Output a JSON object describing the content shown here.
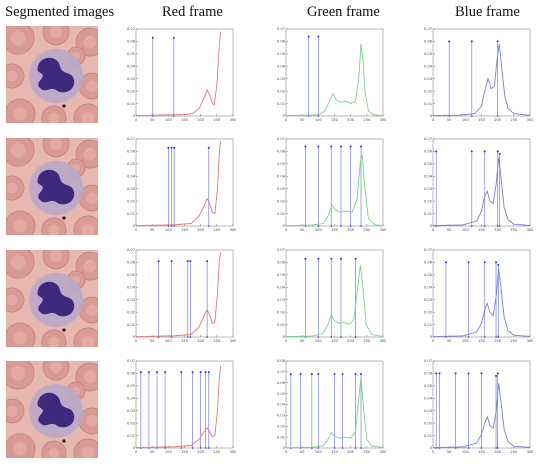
{
  "headers": [
    "Segmented images",
    "Red frame",
    "Green frame",
    "Blue frame"
  ],
  "colors": {
    "red": "#e8787c",
    "green": "#7ad28a",
    "blue": "#7b7fdc",
    "marker": "#2a2ee0",
    "cell_bg": "#e7b8b0",
    "rbc": "#d99a95",
    "nucleus": "#3d2a7e"
  },
  "chart_data": [
    {
      "row": 1,
      "channel": "red",
      "type": "line",
      "xlim": [
        0,
        300
      ],
      "xticks": [
        "0",
        "50",
        "100",
        "150",
        "200",
        "250",
        "300"
      ],
      "yticks": [
        "0",
        "0.01",
        "0.02",
        "0.03",
        "0.04",
        "0.05",
        "0.06",
        "0.07"
      ],
      "ylim": [
        0,
        0.07
      ],
      "markers": [
        {
          "x": 52,
          "y": 0.063
        },
        {
          "x": 117,
          "y": 0.063
        }
      ],
      "curve": [
        [
          0,
          0.0003
        ],
        [
          40,
          0.0005
        ],
        [
          80,
          0.0008
        ],
        [
          120,
          0.001
        ],
        [
          150,
          0.0012
        ],
        [
          175,
          0.002
        ],
        [
          195,
          0.006
        ],
        [
          210,
          0.014
        ],
        [
          220,
          0.021
        ],
        [
          228,
          0.017
        ],
        [
          236,
          0.01
        ],
        [
          242,
          0.009
        ],
        [
          250,
          0.025
        ],
        [
          258,
          0.058
        ],
        [
          262,
          0.068
        ]
      ]
    },
    {
      "row": 1,
      "channel": "green",
      "type": "line",
      "xlim": [
        0,
        300
      ],
      "xticks": [
        "0",
        "50",
        "100",
        "150",
        "200",
        "250",
        "300"
      ],
      "yticks": [
        "0",
        "0.01",
        "0.02",
        "0.03",
        "0.04",
        "0.05",
        "0.06",
        "0.07"
      ],
      "ylim": [
        0,
        0.07
      ],
      "markers": [
        {
          "x": 70,
          "y": 0.064
        },
        {
          "x": 100,
          "y": 0.064
        }
      ],
      "curve": [
        [
          0,
          0.0003
        ],
        [
          60,
          0.0006
        ],
        [
          100,
          0.001
        ],
        [
          120,
          0.004
        ],
        [
          135,
          0.012
        ],
        [
          145,
          0.018
        ],
        [
          155,
          0.013
        ],
        [
          170,
          0.011
        ],
        [
          185,
          0.012
        ],
        [
          200,
          0.01
        ],
        [
          215,
          0.012
        ],
        [
          225,
          0.03
        ],
        [
          232,
          0.058
        ],
        [
          238,
          0.045
        ],
        [
          245,
          0.018
        ],
        [
          255,
          0.004
        ],
        [
          270,
          0.001
        ],
        [
          300,
          0.0004
        ]
      ]
    },
    {
      "row": 1,
      "channel": "blue",
      "type": "line",
      "xlim": [
        0,
        300
      ],
      "xticks": [
        "0",
        "50",
        "100",
        "150",
        "200",
        "250",
        "300"
      ],
      "yticks": [
        "0",
        "0.01",
        "0.02",
        "0.03",
        "0.04",
        "0.05",
        "0.06",
        "0.07"
      ],
      "ylim": [
        0,
        0.07
      ],
      "markers": [
        {
          "x": 50,
          "y": 0.06
        },
        {
          "x": 120,
          "y": 0.06
        },
        {
          "x": 200,
          "y": 0.06
        }
      ],
      "curve": [
        [
          0,
          0.0003
        ],
        [
          80,
          0.0006
        ],
        [
          130,
          0.002
        ],
        [
          150,
          0.008
        ],
        [
          160,
          0.02
        ],
        [
          170,
          0.03
        ],
        [
          180,
          0.022
        ],
        [
          190,
          0.024
        ],
        [
          198,
          0.045
        ],
        [
          205,
          0.058
        ],
        [
          212,
          0.04
        ],
        [
          222,
          0.016
        ],
        [
          232,
          0.006
        ],
        [
          250,
          0.002
        ],
        [
          300,
          0.0005
        ]
      ]
    },
    {
      "row": 2,
      "channel": "red",
      "type": "line",
      "xlim": [
        0,
        300
      ],
      "xticks": [
        "0",
        "50",
        "100",
        "150",
        "200",
        "250",
        "300"
      ],
      "yticks": [
        "0",
        "0.01",
        "0.02",
        "0.03",
        "0.04",
        "0.05",
        "0.06",
        "0.07"
      ],
      "ylim": [
        0,
        0.07
      ],
      "markers": [
        {
          "x": 100,
          "y": 0.063
        },
        {
          "x": 110,
          "y": 0.063
        },
        {
          "x": 118,
          "y": 0.063
        },
        {
          "x": 225,
          "y": 0.063
        }
      ],
      "curve": [
        [
          0,
          0.0003
        ],
        [
          60,
          0.0006
        ],
        [
          120,
          0.001
        ],
        [
          170,
          0.002
        ],
        [
          195,
          0.008
        ],
        [
          210,
          0.016
        ],
        [
          220,
          0.022
        ],
        [
          228,
          0.018
        ],
        [
          236,
          0.011
        ],
        [
          244,
          0.01
        ],
        [
          252,
          0.03
        ],
        [
          258,
          0.06
        ],
        [
          262,
          0.068
        ]
      ]
    },
    {
      "row": 2,
      "channel": "green",
      "type": "line",
      "xlim": [
        0,
        300
      ],
      "xticks": [
        "0",
        "50",
        "100",
        "150",
        "200",
        "250",
        "300"
      ],
      "yticks": [
        "0",
        "0.01",
        "0.02",
        "0.03",
        "0.04",
        "0.05",
        "0.06",
        "0.07"
      ],
      "ylim": [
        0,
        0.07
      ],
      "markers": [
        {
          "x": 60,
          "y": 0.064
        },
        {
          "x": 100,
          "y": 0.064
        },
        {
          "x": 140,
          "y": 0.064
        },
        {
          "x": 170,
          "y": 0.064
        },
        {
          "x": 200,
          "y": 0.064
        },
        {
          "x": 232,
          "y": 0.064
        }
      ],
      "curve": [
        [
          0,
          0.0003
        ],
        [
          80,
          0.0007
        ],
        [
          115,
          0.002
        ],
        [
          130,
          0.008
        ],
        [
          142,
          0.017
        ],
        [
          152,
          0.013
        ],
        [
          168,
          0.011
        ],
        [
          185,
          0.012
        ],
        [
          205,
          0.011
        ],
        [
          220,
          0.022
        ],
        [
          230,
          0.052
        ],
        [
          236,
          0.057
        ],
        [
          244,
          0.03
        ],
        [
          255,
          0.006
        ],
        [
          275,
          0.001
        ],
        [
          300,
          0.0004
        ]
      ]
    },
    {
      "row": 2,
      "channel": "blue",
      "type": "line",
      "xlim": [
        0,
        300
      ],
      "xticks": [
        "0",
        "50",
        "100",
        "150",
        "200",
        "250",
        "300"
      ],
      "yticks": [
        "0",
        "0.01",
        "0.02",
        "0.03",
        "0.04",
        "0.05",
        "0.06",
        "0.07"
      ],
      "ylim": [
        0,
        0.07
      ],
      "markers": [
        {
          "x": 10,
          "y": 0.06
        },
        {
          "x": 120,
          "y": 0.06
        },
        {
          "x": 160,
          "y": 0.06
        },
        {
          "x": 200,
          "y": 0.06
        },
        {
          "x": 206,
          "y": 0.058
        }
      ],
      "curve": [
        [
          0,
          0.0003
        ],
        [
          90,
          0.0008
        ],
        [
          135,
          0.004
        ],
        [
          150,
          0.012
        ],
        [
          160,
          0.024
        ],
        [
          168,
          0.028
        ],
        [
          176,
          0.02
        ],
        [
          186,
          0.018
        ],
        [
          196,
          0.035
        ],
        [
          203,
          0.055
        ],
        [
          210,
          0.04
        ],
        [
          220,
          0.015
        ],
        [
          232,
          0.005
        ],
        [
          250,
          0.0015
        ],
        [
          300,
          0.0004
        ]
      ]
    },
    {
      "row": 3,
      "channel": "red",
      "type": "line",
      "xlim": [
        0,
        300
      ],
      "xticks": [
        "0",
        "50",
        "100",
        "150",
        "200",
        "250",
        "300"
      ],
      "yticks": [
        "0",
        "0.01",
        "0.02",
        "0.03",
        "0.04",
        "0.05",
        "0.06",
        "0.07"
      ],
      "ylim": [
        0,
        0.07
      ],
      "markers": [
        {
          "x": 70,
          "y": 0.061
        },
        {
          "x": 110,
          "y": 0.061
        },
        {
          "x": 160,
          "y": 0.061
        },
        {
          "x": 168,
          "y": 0.061
        },
        {
          "x": 220,
          "y": 0.061
        }
      ],
      "curve": [
        [
          0,
          0.0003
        ],
        [
          60,
          0.0006
        ],
        [
          120,
          0.001
        ],
        [
          170,
          0.002
        ],
        [
          195,
          0.008
        ],
        [
          210,
          0.017
        ],
        [
          220,
          0.022
        ],
        [
          228,
          0.018
        ],
        [
          236,
          0.011
        ],
        [
          244,
          0.012
        ],
        [
          252,
          0.035
        ],
        [
          258,
          0.062
        ],
        [
          262,
          0.068
        ]
      ]
    },
    {
      "row": 3,
      "channel": "green",
      "type": "line",
      "xlim": [
        0,
        300
      ],
      "xticks": [
        "0",
        "50",
        "100",
        "150",
        "200",
        "250",
        "300"
      ],
      "yticks": [
        "0",
        "0.01",
        "0.02",
        "0.03",
        "0.04",
        "0.05",
        "0.06",
        "0.07"
      ],
      "ylim": [
        0,
        0.07
      ],
      "markers": [
        {
          "x": 60,
          "y": 0.063
        },
        {
          "x": 100,
          "y": 0.063
        },
        {
          "x": 140,
          "y": 0.063
        },
        {
          "x": 170,
          "y": 0.063
        },
        {
          "x": 215,
          "y": 0.063
        }
      ],
      "curve": [
        [
          0,
          0.0003
        ],
        [
          80,
          0.0007
        ],
        [
          115,
          0.003
        ],
        [
          130,
          0.01
        ],
        [
          140,
          0.018
        ],
        [
          150,
          0.013
        ],
        [
          165,
          0.011
        ],
        [
          180,
          0.012
        ],
        [
          195,
          0.01
        ],
        [
          210,
          0.014
        ],
        [
          222,
          0.04
        ],
        [
          230,
          0.058
        ],
        [
          238,
          0.04
        ],
        [
          248,
          0.01
        ],
        [
          265,
          0.002
        ],
        [
          300,
          0.0004
        ]
      ]
    },
    {
      "row": 3,
      "channel": "blue",
      "type": "line",
      "xlim": [
        0,
        300
      ],
      "xticks": [
        "0",
        "50",
        "100",
        "150",
        "200",
        "250",
        "300"
      ],
      "yticks": [
        "0",
        "0.01",
        "0.02",
        "0.03",
        "0.04",
        "0.05",
        "0.06",
        "0.07"
      ],
      "ylim": [
        0,
        0.07
      ],
      "markers": [
        {
          "x": 40,
          "y": 0.06
        },
        {
          "x": 110,
          "y": 0.06
        },
        {
          "x": 160,
          "y": 0.06
        },
        {
          "x": 195,
          "y": 0.06
        },
        {
          "x": 202,
          "y": 0.058
        }
      ],
      "curve": [
        [
          0,
          0.0003
        ],
        [
          90,
          0.0008
        ],
        [
          135,
          0.004
        ],
        [
          150,
          0.011
        ],
        [
          160,
          0.022
        ],
        [
          168,
          0.027
        ],
        [
          176,
          0.02
        ],
        [
          186,
          0.017
        ],
        [
          196,
          0.034
        ],
        [
          203,
          0.055
        ],
        [
          210,
          0.04
        ],
        [
          220,
          0.016
        ],
        [
          232,
          0.005
        ],
        [
          250,
          0.0015
        ],
        [
          300,
          0.0004
        ]
      ]
    },
    {
      "row": 4,
      "channel": "red",
      "type": "line",
      "xlim": [
        0,
        300
      ],
      "xticks": [
        "0",
        "50",
        "100",
        "150",
        "200",
        "250",
        "300"
      ],
      "yticks": [
        "0",
        "0.01",
        "0.02",
        "0.03",
        "0.04",
        "0.05",
        "0.06",
        "0.07"
      ],
      "ylim": [
        0,
        0.07
      ],
      "markers": [
        {
          "x": 15,
          "y": 0.061
        },
        {
          "x": 40,
          "y": 0.061
        },
        {
          "x": 65,
          "y": 0.061
        },
        {
          "x": 90,
          "y": 0.061
        },
        {
          "x": 140,
          "y": 0.061
        },
        {
          "x": 175,
          "y": 0.061
        },
        {
          "x": 200,
          "y": 0.061
        },
        {
          "x": 215,
          "y": 0.061
        },
        {
          "x": 225,
          "y": 0.061
        }
      ],
      "curve": [
        [
          0,
          0.0003
        ],
        [
          60,
          0.0006
        ],
        [
          120,
          0.001
        ],
        [
          170,
          0.002
        ],
        [
          195,
          0.007
        ],
        [
          210,
          0.013
        ],
        [
          220,
          0.016
        ],
        [
          228,
          0.013
        ],
        [
          236,
          0.009
        ],
        [
          244,
          0.01
        ],
        [
          252,
          0.03
        ],
        [
          258,
          0.058
        ],
        [
          262,
          0.066
        ]
      ]
    },
    {
      "row": 4,
      "channel": "green",
      "type": "line",
      "xlim": [
        0,
        300
      ],
      "xticks": [
        "0",
        "50",
        "100",
        "150",
        "200",
        "250",
        "300"
      ],
      "yticks": [
        "0",
        "0.01",
        "0.02",
        "0.03",
        "0.04",
        "0.05",
        "0.06",
        "0.07",
        "0.08"
      ],
      "ylim": [
        0,
        0.08
      ],
      "markers": [
        {
          "x": 15,
          "y": 0.068
        },
        {
          "x": 45,
          "y": 0.068
        },
        {
          "x": 80,
          "y": 0.068
        },
        {
          "x": 100,
          "y": 0.068
        },
        {
          "x": 150,
          "y": 0.068
        },
        {
          "x": 175,
          "y": 0.068
        },
        {
          "x": 215,
          "y": 0.068
        },
        {
          "x": 232,
          "y": 0.068
        }
      ],
      "curve": [
        [
          0,
          0.0003
        ],
        [
          80,
          0.0007
        ],
        [
          115,
          0.002
        ],
        [
          130,
          0.008
        ],
        [
          140,
          0.014
        ],
        [
          150,
          0.011
        ],
        [
          165,
          0.009
        ],
        [
          180,
          0.01
        ],
        [
          200,
          0.009
        ],
        [
          215,
          0.015
        ],
        [
          225,
          0.045
        ],
        [
          232,
          0.066
        ],
        [
          240,
          0.035
        ],
        [
          250,
          0.008
        ],
        [
          265,
          0.002
        ],
        [
          300,
          0.0004
        ]
      ]
    },
    {
      "row": 4,
      "channel": "blue",
      "type": "line",
      "xlim": [
        0,
        300
      ],
      "xticks": [
        "0",
        "50",
        "100",
        "150",
        "200",
        "250",
        "300"
      ],
      "yticks": [
        "0",
        "0.01",
        "0.02",
        "0.03",
        "0.04",
        "0.05",
        "0.06",
        "0.07"
      ],
      "ylim": [
        0,
        0.07
      ],
      "markers": [
        {
          "x": 10,
          "y": 0.06
        },
        {
          "x": 20,
          "y": 0.06
        },
        {
          "x": 70,
          "y": 0.06
        },
        {
          "x": 110,
          "y": 0.06
        },
        {
          "x": 150,
          "y": 0.06
        },
        {
          "x": 195,
          "y": 0.058
        },
        {
          "x": 200,
          "y": 0.06
        }
      ],
      "curve": [
        [
          0,
          0.0003
        ],
        [
          90,
          0.0008
        ],
        [
          135,
          0.004
        ],
        [
          150,
          0.011
        ],
        [
          160,
          0.02
        ],
        [
          168,
          0.025
        ],
        [
          176,
          0.018
        ],
        [
          186,
          0.016
        ],
        [
          196,
          0.03
        ],
        [
          203,
          0.052
        ],
        [
          210,
          0.038
        ],
        [
          220,
          0.015
        ],
        [
          232,
          0.005
        ],
        [
          250,
          0.0015
        ],
        [
          300,
          0.0004
        ]
      ]
    }
  ]
}
